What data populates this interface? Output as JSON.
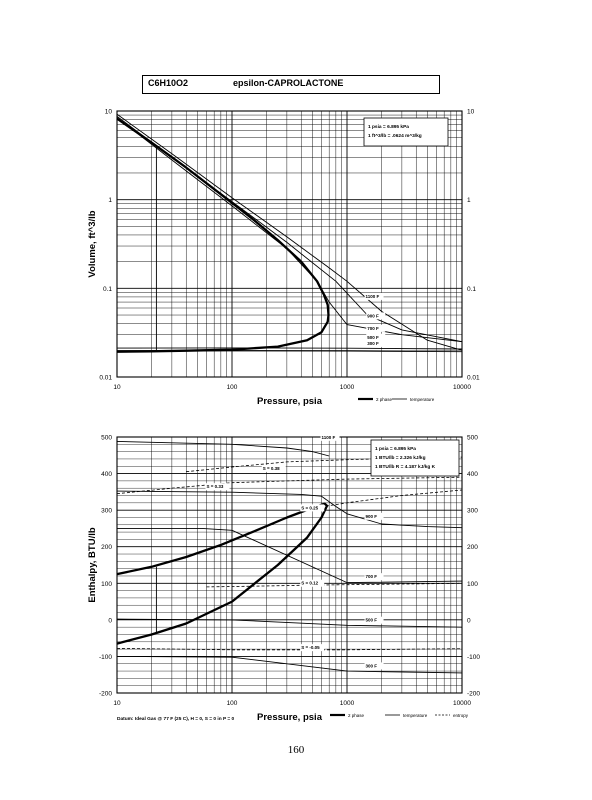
{
  "page": {
    "formula": "C6H10O2",
    "compound": "epsilon-CAPROLACTONE",
    "page_number": "160",
    "datum_note": "Datum: Ideal Gas @ 77 F (25 C), H = 0, S = 0 in P = 0"
  },
  "chart_data": [
    {
      "type": "line",
      "name": "volume-pressure",
      "xlabel": "Pressure,  psia",
      "ylabel": "Volume, ft^3/lb",
      "x_scale": "log",
      "y_scale": "log",
      "xlim": [
        10,
        10000
      ],
      "ylim": [
        0.01,
        10
      ],
      "x_ticks": [
        "10",
        "100",
        "1000",
        "10000"
      ],
      "y_ticks_left": [
        "10",
        "1",
        "0.1",
        "0.01"
      ],
      "y_ticks_right": [
        "10",
        "1",
        "0.1",
        "0.01"
      ],
      "y_tick_values": [
        10,
        1,
        0.1,
        0.01
      ],
      "grid": true,
      "conversion_note": [
        "1 psia  =  6.895 kPa",
        "1 ft^3/lb  =  .0624 m^3/kg"
      ],
      "legend": [
        "2 phase",
        "temperature"
      ],
      "isotherm_labels": [
        "1100 F",
        "900 F",
        "700 F",
        "500 F",
        "300 F"
      ],
      "series": [
        {
          "name": "2 phase",
          "style": "thick",
          "x": [
            10,
            20,
            40,
            80,
            150,
            250,
            400,
            550,
            630,
            680,
            690,
            680,
            600,
            450,
            250,
            100,
            40,
            20,
            10
          ],
          "y": [
            8.2,
            4.4,
            2.3,
            1.15,
            0.61,
            0.35,
            0.2,
            0.12,
            0.085,
            0.065,
            0.05,
            0.042,
            0.032,
            0.026,
            0.022,
            0.0203,
            0.0198,
            0.0195,
            0.0193
          ]
        },
        {
          "name": "1100 F",
          "x": [
            10,
            30,
            100,
            300,
            700,
            1000,
            2000,
            5000,
            10000
          ],
          "y": [
            9.2,
            3.3,
            1.05,
            0.38,
            0.17,
            0.12,
            0.055,
            0.026,
            0.02
          ]
        },
        {
          "name": "900 F",
          "x": [
            10,
            30,
            100,
            300,
            800,
            1500,
            3000,
            10000
          ],
          "y": [
            8.7,
            3.0,
            0.95,
            0.33,
            0.12,
            0.05,
            0.034,
            0.025
          ]
        },
        {
          "name": "700 F",
          "x": [
            10,
            30,
            100,
            300,
            550,
            700,
            1000,
            3000,
            10000
          ],
          "y": [
            8.4,
            2.8,
            0.85,
            0.28,
            0.12,
            0.07,
            0.039,
            0.03,
            0.025
          ]
        },
        {
          "name": "500 F",
          "x": [
            10,
            100,
            1000,
            10000
          ],
          "y": [
            0.0212,
            0.0213,
            0.0211,
            0.0207
          ]
        },
        {
          "name": "300 F",
          "x": [
            10,
            100,
            1000,
            10000
          ],
          "y": [
            0.0197,
            0.0197,
            0.0196,
            0.0193
          ]
        },
        {
          "name": "constant-pressure line",
          "x": [
            22,
            22
          ],
          "y": [
            0.0196,
            4.0
          ]
        }
      ]
    },
    {
      "type": "line",
      "name": "enthalpy-pressure",
      "xlabel": "Pressure,  psia",
      "ylabel": "Enthalpy, BTU/lb",
      "x_scale": "log",
      "y_scale": "linear",
      "xlim": [
        10,
        10000
      ],
      "ylim": [
        -200,
        500
      ],
      "x_ticks": [
        "10",
        "100",
        "1000",
        "10000"
      ],
      "y_ticks_left": [
        "500",
        "400",
        "300",
        "200",
        "100",
        "0",
        "-100",
        "-200"
      ],
      "y_ticks_right": [
        "500",
        "400",
        "300",
        "200",
        "100",
        "0",
        "-100",
        "-200"
      ],
      "y_tick_values": [
        500,
        400,
        300,
        200,
        100,
        0,
        -100,
        -200
      ],
      "grid": true,
      "conversion_note": [
        "1 psia  =  6.895 kPa",
        "1 BTU/lb  =  2.326 kJ/kg",
        "1 BTU/lb R  =  4.187 kJ/kg K"
      ],
      "legend": [
        "2 phase",
        "temperature",
        "entropy"
      ],
      "isotherm_labels": [
        "1100 F",
        "900 F",
        "700 F",
        "500 F",
        "300 F"
      ],
      "entropy_labels": [
        "S = 0.38",
        "S = 0.33",
        "S = 0.25",
        "S = 0.12",
        "S = -0.05"
      ],
      "series": [
        {
          "name": "2 phase",
          "style": "thick",
          "x": [
            10,
            20,
            40,
            80,
            150,
            300,
            500,
            640,
            670,
            600,
            450,
            250,
            100,
            40,
            20,
            10
          ],
          "y": [
            125,
            145,
            172,
            205,
            240,
            280,
            306,
            318,
            312,
            280,
            225,
            150,
            50,
            -10,
            -40,
            -65
          ]
        },
        {
          "name": "1100 F",
          "x": [
            10,
            100,
            300,
            500,
            700
          ],
          "y": [
            488,
            480,
            470,
            460,
            448
          ]
        },
        {
          "name": "900 F",
          "x": [
            10,
            100,
            400,
            600,
            800,
            1000,
            2000,
            5000,
            10000
          ],
          "y": [
            352,
            349,
            343,
            338,
            310,
            290,
            262,
            255,
            252
          ]
        },
        {
          "name": "700 F",
          "x": [
            10,
            30,
            55,
            100,
            1000,
            10000
          ],
          "y": [
            250,
            250,
            250,
            245,
            102,
            106
          ]
        },
        {
          "name": "500 F",
          "x": [
            10,
            100,
            1000,
            10000
          ],
          "y": [
            2,
            0,
            -15,
            -20
          ]
        },
        {
          "name": "300 F",
          "x": [
            10,
            100,
            1000,
            10000
          ],
          "y": [
            -100,
            -102,
            -140,
            -145
          ]
        },
        {
          "name": "S = 0.38",
          "style": "dashed",
          "x": [
            40,
            100,
            300,
            1000,
            3000,
            10000
          ],
          "y": [
            405,
            418,
            432,
            438,
            442,
            445
          ]
        },
        {
          "name": "S = 0.33",
          "style": "dashed",
          "x": [
            10,
            30,
            100,
            300,
            1000,
            10000
          ],
          "y": [
            345,
            360,
            375,
            380,
            385,
            390
          ]
        },
        {
          "name": "S = 0.25",
          "style": "dashed",
          "x": [
            400,
            1000,
            3000,
            10000
          ],
          "y": [
            300,
            320,
            340,
            355
          ]
        },
        {
          "name": "S = 0.12",
          "style": "dashed",
          "x": [
            60,
            150,
            500,
            1000,
            10000
          ],
          "y": [
            90,
            92,
            95,
            96,
            100
          ]
        },
        {
          "name": "S = -0.05",
          "style": "dashed",
          "x": [
            10,
            100,
            1000,
            10000
          ],
          "y": [
            -78,
            -82,
            -82,
            -79
          ]
        },
        {
          "name": "constant-pressure line",
          "x": [
            22,
            22
          ],
          "y": [
            -35,
            145
          ]
        }
      ]
    }
  ]
}
